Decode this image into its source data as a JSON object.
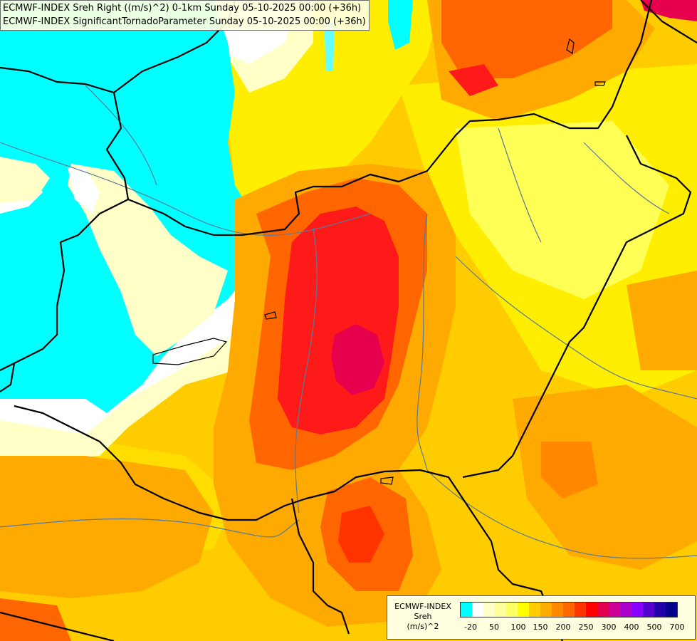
{
  "title": {
    "line1": "ECMWF-INDEX Sreh Right ((m/s)^2) 0-1km Sunday 05-10-2025 00:00 (+36h)",
    "line2": "ECMWF-INDEX SignificantTornadoParameter Sunday 05-10-2025 00:00 (+36h)"
  },
  "legend": {
    "line1": "ECMWF-INDEX",
    "line2": "Sreh",
    "line3": "(m/s)^2",
    "colors": [
      "#00ffff",
      "#ffffff",
      "#ffffc8",
      "#ffff99",
      "#ffff66",
      "#ffff00",
      "#ffcc00",
      "#ffaa00",
      "#ff8800",
      "#ff6600",
      "#ff3300",
      "#ff0000",
      "#e00050",
      "#cc0099",
      "#aa00cc",
      "#8800ff",
      "#5500cc",
      "#2200aa",
      "#000088"
    ],
    "ticks": [
      "-20",
      "50",
      "100",
      "150",
      "200",
      "250",
      "300",
      "400",
      "500",
      "700"
    ]
  },
  "map": {
    "field_colors": {
      "low_negative": "#00ffff",
      "near_zero": "#ffffff",
      "low": "#ffffc8",
      "moderate": "#ffee00",
      "elevated": "#ffaa00",
      "high": "#ff6600",
      "very_high": "#ff1a1a",
      "extreme": "#e6004d"
    },
    "border_color": "#000000",
    "river_color": "#5a7a9a"
  }
}
